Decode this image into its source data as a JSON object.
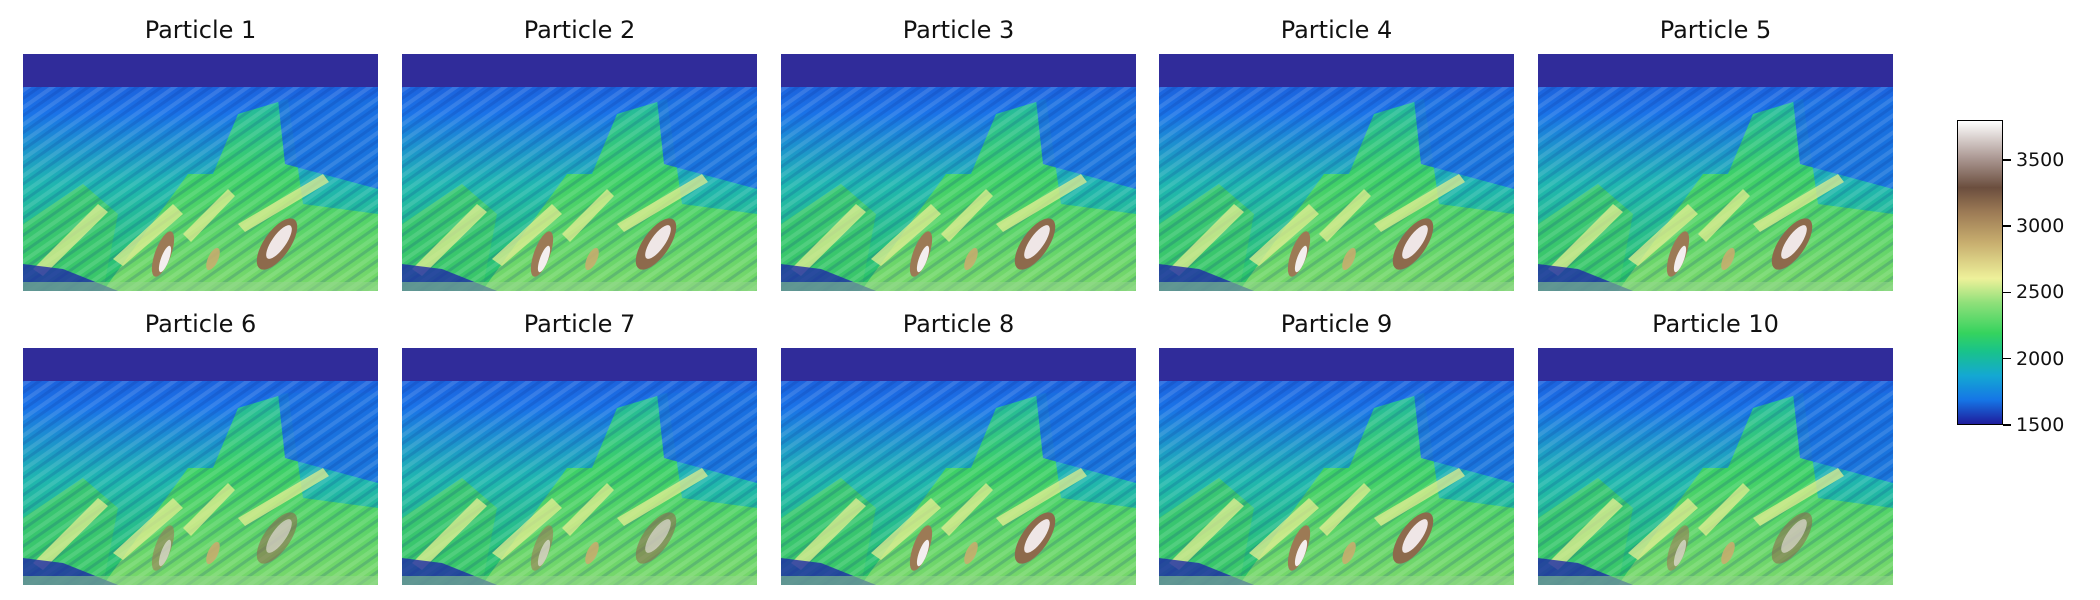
{
  "chart_data": {
    "type": "heatmap",
    "panels": [
      {
        "title": "Particle 1"
      },
      {
        "title": "Particle 2"
      },
      {
        "title": "Particle 3"
      },
      {
        "title": "Particle 4"
      },
      {
        "title": "Particle 5"
      },
      {
        "title": "Particle 6"
      },
      {
        "title": "Particle 7"
      },
      {
        "title": "Particle 8"
      },
      {
        "title": "Particle 9"
      },
      {
        "title": "Particle 10"
      }
    ],
    "layout": {
      "rows": 2,
      "columns": 5
    },
    "axes_visible": false,
    "colorbar": {
      "colormap": "terrain",
      "range": [
        1500,
        3800
      ],
      "ticks": [
        1500,
        2000,
        2500,
        3000,
        3500
      ],
      "tick_labels": [
        "1500",
        "2000",
        "2500",
        "3000",
        "3500"
      ],
      "position": "right"
    }
  }
}
